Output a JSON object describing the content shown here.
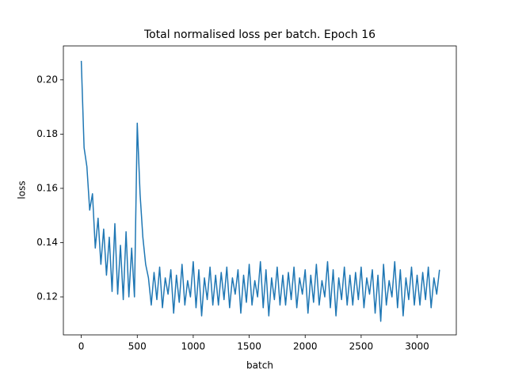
{
  "chart_data": {
    "type": "line",
    "title": "Total normalised loss per batch. Epoch 16",
    "x_label": "batch",
    "y_label": "loss",
    "x": [
      0,
      25,
      50,
      75,
      100,
      125,
      150,
      175,
      200,
      225,
      250,
      275,
      300,
      325,
      350,
      375,
      400,
      425,
      450,
      475,
      500,
      525,
      550,
      575,
      600,
      625,
      650,
      675,
      700,
      725,
      750,
      775,
      800,
      825,
      850,
      875,
      900,
      925,
      950,
      975,
      1000,
      1025,
      1050,
      1075,
      1100,
      1125,
      1150,
      1175,
      1200,
      1225,
      1250,
      1275,
      1300,
      1325,
      1350,
      1375,
      1400,
      1425,
      1450,
      1475,
      1500,
      1525,
      1550,
      1575,
      1600,
      1625,
      1650,
      1675,
      1700,
      1725,
      1750,
      1775,
      1800,
      1825,
      1850,
      1875,
      1900,
      1925,
      1950,
      1975,
      2000,
      2025,
      2050,
      2075,
      2100,
      2125,
      2150,
      2175,
      2200,
      2225,
      2250,
      2275,
      2300,
      2325,
      2350,
      2375,
      2400,
      2425,
      2450,
      2475,
      2500,
      2525,
      2550,
      2575,
      2600,
      2625,
      2650,
      2675,
      2700,
      2725,
      2750,
      2775,
      2800,
      2825,
      2850,
      2875,
      2900,
      2925,
      2950,
      2975,
      3000,
      3025,
      3050,
      3075,
      3100,
      3125,
      3150,
      3175,
      3200
    ],
    "series": [
      {
        "name": "loss",
        "color": "#1f77b4",
        "values": [
          0.207,
          0.175,
          0.168,
          0.152,
          0.158,
          0.138,
          0.149,
          0.132,
          0.145,
          0.128,
          0.142,
          0.122,
          0.147,
          0.121,
          0.139,
          0.119,
          0.144,
          0.12,
          0.138,
          0.12,
          0.184,
          0.158,
          0.142,
          0.132,
          0.127,
          0.117,
          0.129,
          0.119,
          0.131,
          0.116,
          0.127,
          0.121,
          0.13,
          0.114,
          0.128,
          0.118,
          0.132,
          0.117,
          0.126,
          0.12,
          0.133,
          0.116,
          0.13,
          0.113,
          0.127,
          0.119,
          0.131,
          0.117,
          0.128,
          0.117,
          0.129,
          0.119,
          0.131,
          0.116,
          0.127,
          0.121,
          0.13,
          0.114,
          0.128,
          0.118,
          0.132,
          0.117,
          0.126,
          0.12,
          0.133,
          0.116,
          0.13,
          0.113,
          0.127,
          0.119,
          0.131,
          0.117,
          0.128,
          0.117,
          0.129,
          0.119,
          0.131,
          0.116,
          0.127,
          0.121,
          0.13,
          0.114,
          0.128,
          0.118,
          0.132,
          0.117,
          0.126,
          0.12,
          0.133,
          0.116,
          0.13,
          0.113,
          0.127,
          0.119,
          0.131,
          0.117,
          0.128,
          0.117,
          0.129,
          0.119,
          0.131,
          0.116,
          0.127,
          0.121,
          0.13,
          0.114,
          0.128,
          0.111,
          0.132,
          0.117,
          0.126,
          0.12,
          0.133,
          0.116,
          0.13,
          0.113,
          0.127,
          0.119,
          0.131,
          0.117,
          0.128,
          0.117,
          0.129,
          0.119,
          0.131,
          0.116,
          0.127,
          0.121,
          0.13
        ]
      }
    ],
    "xlim": [
      -160,
      3350
    ],
    "ylim": [
      0.106,
      0.2125
    ],
    "xticks": [
      0,
      500,
      1000,
      1500,
      2000,
      2500,
      3000
    ],
    "yticks": [
      0.12,
      0.14,
      0.16,
      0.18,
      {
        "value": 0.2,
        "label": "0.20"
      }
    ],
    "grid": false
  }
}
